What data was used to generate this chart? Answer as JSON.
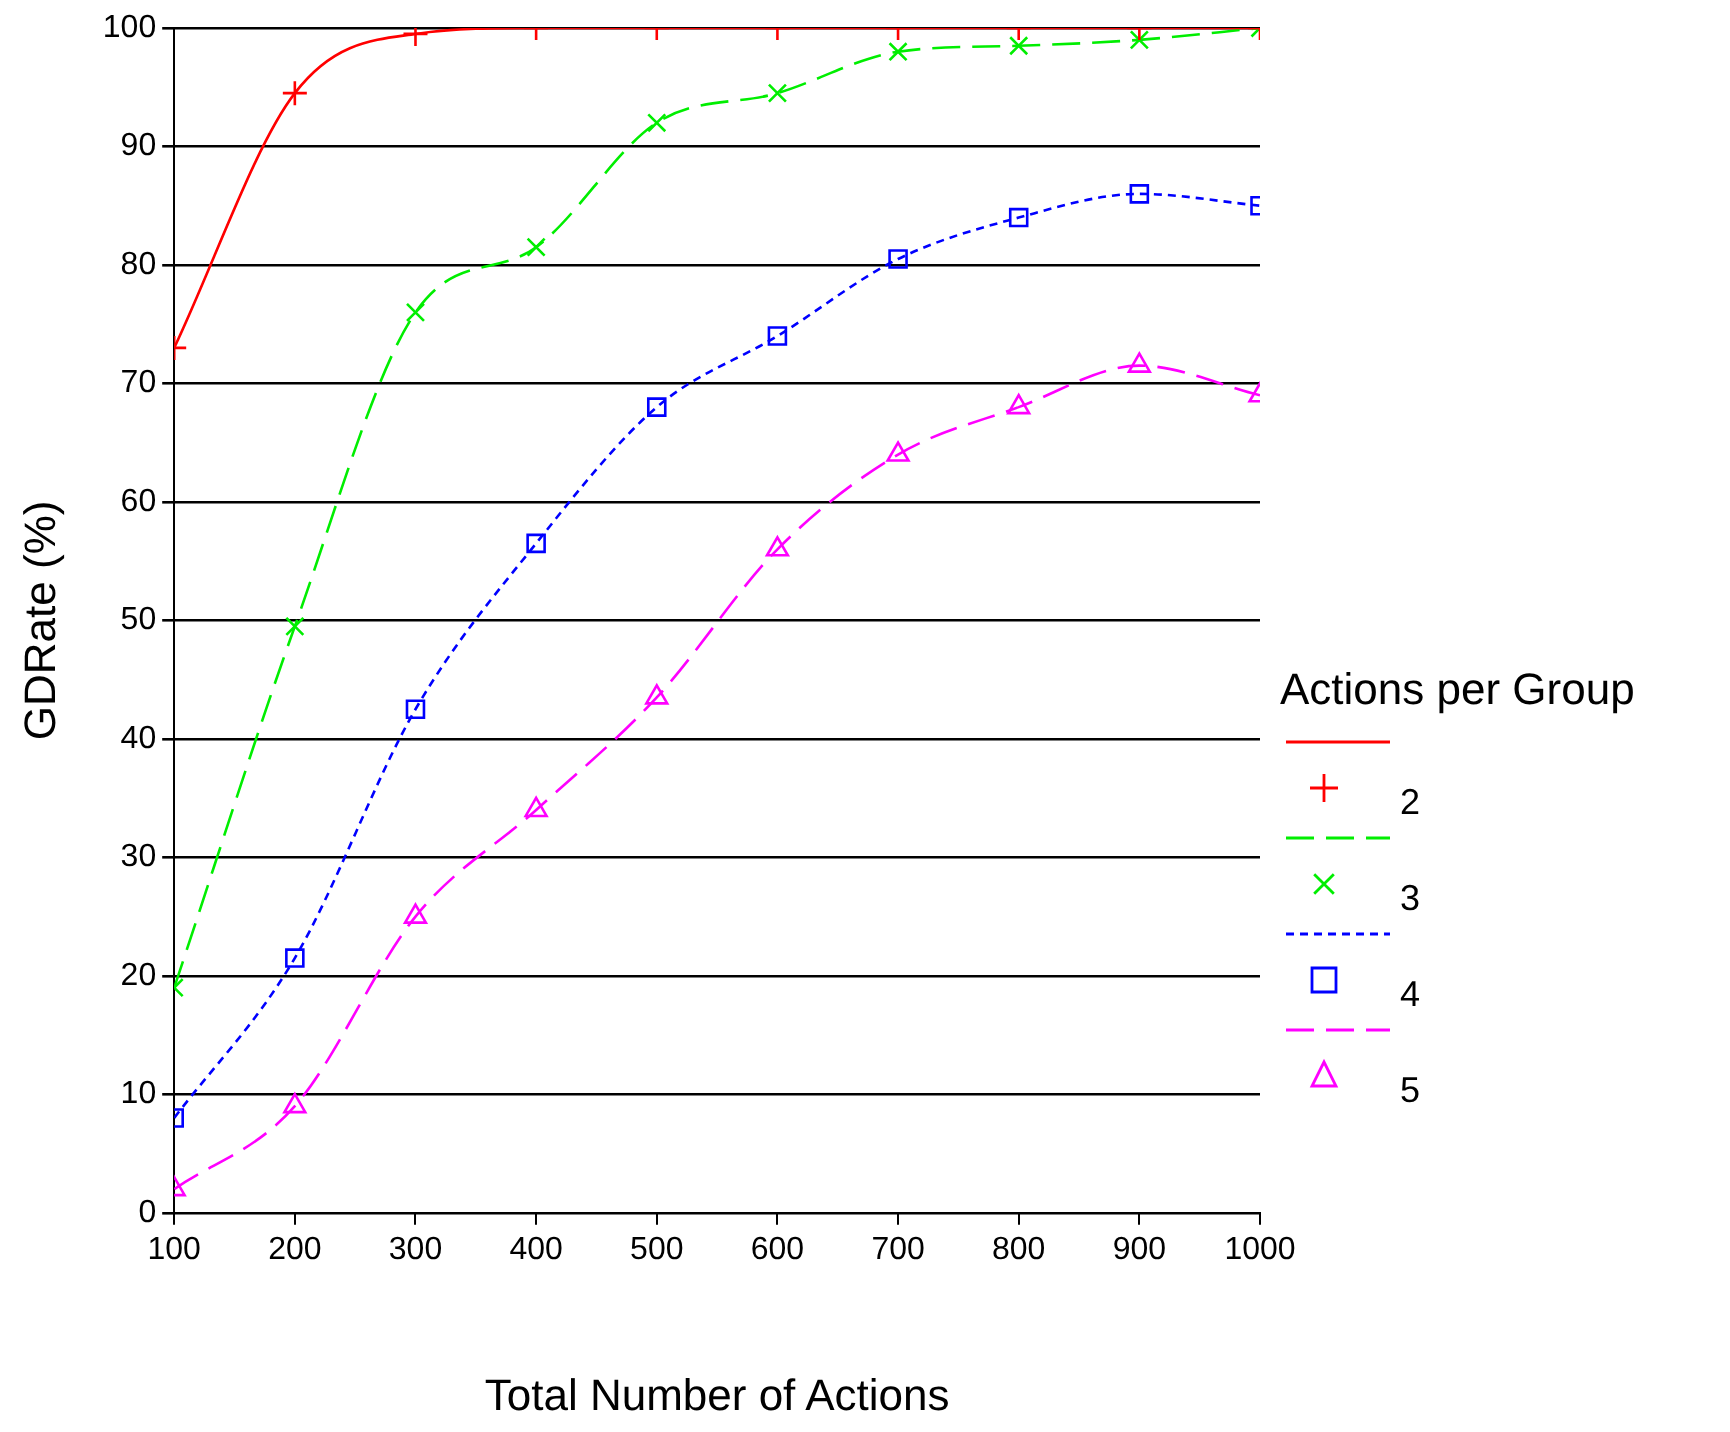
{
  "chart_data": {
    "type": "line",
    "xlabel": "Total Number of Actions",
    "ylabel": "GDRate (%)",
    "legend_title": "Actions per Group",
    "legend": "right",
    "grid": "y",
    "x": [
      100,
      200,
      300,
      400,
      500,
      600,
      700,
      800,
      900,
      1000
    ],
    "xlim": [
      100,
      1000
    ],
    "xticks": [
      100,
      200,
      300,
      400,
      500,
      600,
      700,
      800,
      900,
      1000
    ],
    "ylim": [
      0,
      100
    ],
    "yticks": [
      0,
      10,
      20,
      30,
      40,
      50,
      60,
      70,
      80,
      90,
      100
    ],
    "series": [
      {
        "name": "2",
        "color": "#ff0000",
        "marker": "cross",
        "line_style": "solid",
        "values": [
          73,
          94.5,
          99.5,
          100,
          100,
          100,
          100,
          100,
          100,
          100
        ]
      },
      {
        "name": "3",
        "color": "#00ee00",
        "marker": "x",
        "line_style": "dashed",
        "values": [
          19,
          49.5,
          76,
          81.5,
          92,
          94.5,
          98,
          98.5,
          99,
          100
        ]
      },
      {
        "name": "4",
        "color": "#0000ff",
        "marker": "square",
        "line_style": "dotted",
        "values": [
          8,
          21.5,
          42.5,
          56.5,
          68,
          74,
          80.5,
          84,
          86,
          85
        ]
      },
      {
        "name": "5",
        "color": "#ff00ff",
        "marker": "triangle",
        "line_style": "dashed",
        "values": [
          2,
          9,
          25,
          34,
          43.5,
          56,
          64,
          68,
          71.5,
          69
        ]
      }
    ]
  }
}
